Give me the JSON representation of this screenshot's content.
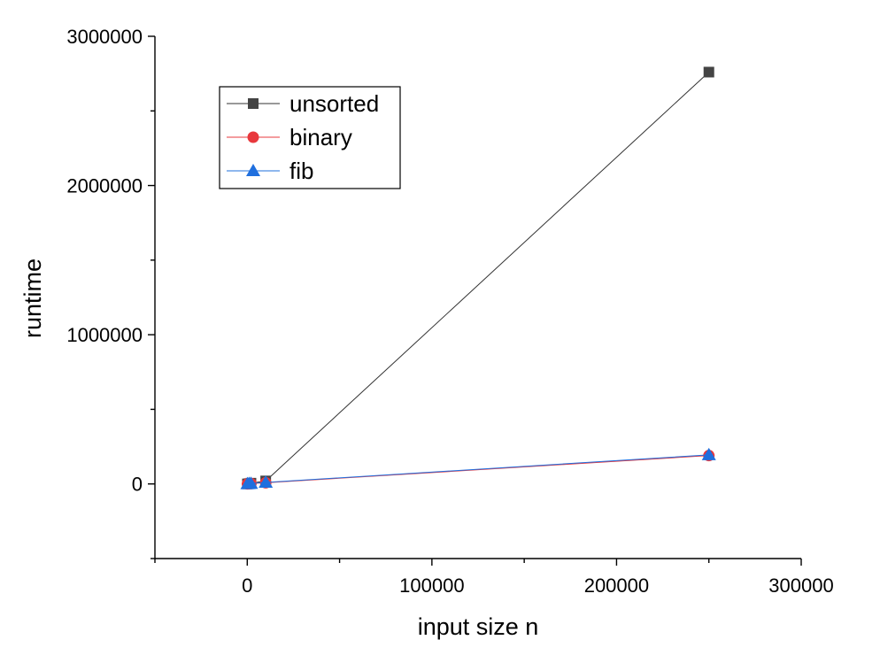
{
  "chart_data": {
    "type": "line",
    "xlabel": "input size n",
    "ylabel": "runtime",
    "xlim": [
      -50000,
      300000
    ],
    "ylim": [
      -500000,
      3000000
    ],
    "x_ticks": [
      0,
      100000,
      200000,
      300000
    ],
    "y_ticks": [
      0,
      1000000,
      2000000,
      3000000
    ],
    "x_tick_labels": [
      "0",
      "100000",
      "200000",
      "300000"
    ],
    "y_tick_labels": [
      "0",
      "1000000",
      "2000000",
      "3000000"
    ],
    "grid": false,
    "legend_position": "top-left",
    "series": [
      {
        "name": "unsorted",
        "marker": "square",
        "color": "#444444",
        "line_color": "#333333",
        "x": [
          100,
          1000,
          2000,
          10000,
          250000
        ],
        "y": [
          200,
          2000,
          5000,
          20000,
          2760000
        ]
      },
      {
        "name": "binary",
        "marker": "circle",
        "color": "#e8383d",
        "line_color": "#e8383d",
        "x": [
          100,
          1000,
          2000,
          10000,
          250000
        ],
        "y": [
          300,
          1500,
          2500,
          8000,
          190000
        ]
      },
      {
        "name": "fib",
        "marker": "triangle",
        "color": "#1f6fde",
        "line_color": "#1f6fde",
        "x": [
          100,
          1000,
          2000,
          10000,
          250000
        ],
        "y": [
          500,
          2000,
          3000,
          10000,
          195000
        ]
      }
    ]
  }
}
